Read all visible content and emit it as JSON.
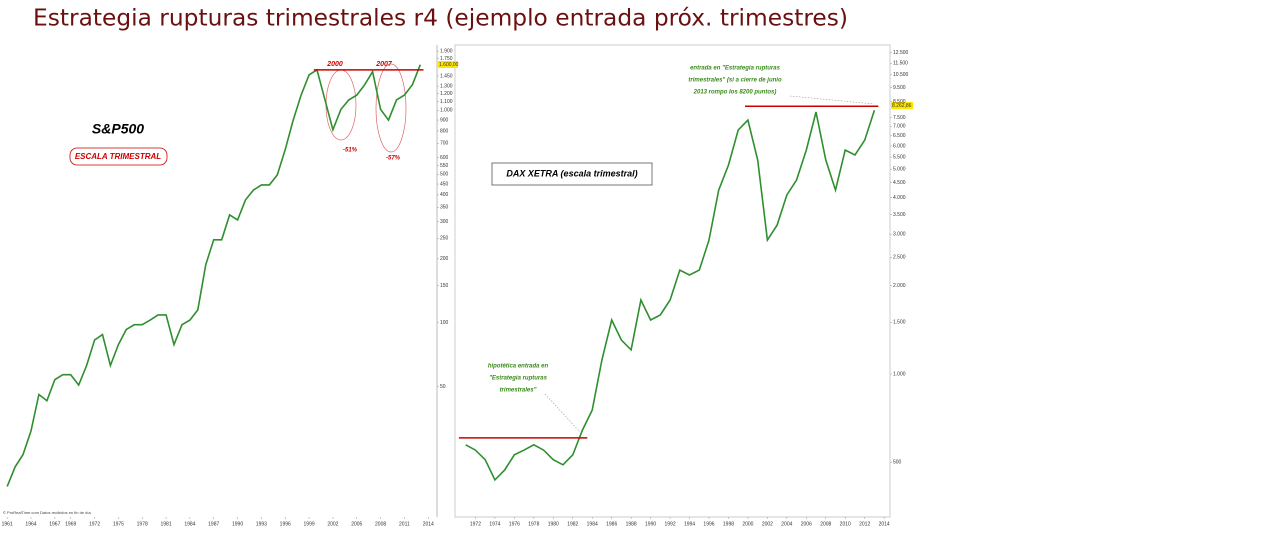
{
  "title": "Estrategia rupturas trimestrales r4 (ejemplo entrada próx. trimestres)",
  "chart_data": [
    {
      "type": "line",
      "log_y": true,
      "color": "#2f8f2f",
      "hline_color": "#cc0000",
      "annotations": [
        "S&P500",
        "ESCALA TRIMESTRAL",
        "2000",
        "2007",
        "-51%",
        "-57%",
        "1.600,00",
        "© ProRealTime.com Datos recibidos en fin de día"
      ],
      "xlim": [
        1960.1,
        2015.1
      ],
      "ylim": [
        12.2,
        2030
      ],
      "xticks": [
        1961,
        1964,
        1967,
        1969,
        1972,
        1975,
        1978,
        1981,
        1984,
        1987,
        1990,
        1993,
        1996,
        1999,
        2002,
        2005,
        2008,
        2011,
        2014
      ],
      "yticks": [
        {
          "value": 1900,
          "label": "1.900"
        },
        {
          "value": 1750,
          "label": "1.750"
        },
        {
          "value": 1450,
          "label": "1.450"
        },
        {
          "value": 1300,
          "label": "1.300"
        },
        {
          "value": 1200,
          "label": "1.200"
        },
        {
          "value": 1100,
          "label": "1.100"
        },
        {
          "value": 1000,
          "label": "1.000"
        },
        900,
        800,
        700,
        600,
        550,
        500,
        450,
        400,
        350,
        300,
        250,
        200,
        150,
        100,
        50
      ],
      "hlines": [
        1550
      ],
      "x": [
        1961,
        1962,
        1963,
        1964,
        1965,
        1966,
        1967,
        1968,
        1969,
        1970,
        1971,
        1972,
        1973,
        1974,
        1975,
        1976,
        1977,
        1978,
        1979,
        1980,
        1981,
        1982,
        1983,
        1984,
        1985,
        1986,
        1987,
        1988,
        1989,
        1990,
        1991,
        1992,
        1993,
        1994,
        1995,
        1996,
        1997,
        1998,
        1999,
        2000,
        2001,
        2002,
        2003,
        2004,
        2005,
        2006,
        2007,
        2008,
        2009,
        2010,
        2011,
        2012,
        2013
      ],
      "series": [
        {
          "values": [
            17,
            21,
            24,
            31,
            46,
            43,
            54,
            57,
            57,
            51,
            63,
            83,
            88,
            63,
            79,
            93,
            98,
            98,
            103,
            109,
            109,
            79,
            98,
            103,
            115,
            188,
            246,
            246,
            322,
            305,
            379,
            422,
            446,
            446,
            497,
            653,
            900,
            1180,
            1470,
            1550,
            1120,
            810,
            1010,
            1120,
            1180,
            1320,
            1520,
            1010,
            900,
            1120,
            1180,
            1320,
            1640
          ]
        }
      ]
    },
    {
      "type": "line",
      "log_y": true,
      "color": "#2f8f2f",
      "hline_color": "#cc0000",
      "annotations": [
        "DAX XETRA (escala trimestral)",
        "entrada  en \"Estrategia rupturas",
        "trimestrales\" (si a cierre de junio",
        "2013 rompo los 8200 puntos)",
        "hipotética entrada en",
        "\"Estrategia rupturas",
        "trimestrales\"",
        "8.262,86"
      ],
      "xlim": [
        1969.9,
        2014.6
      ],
      "ylim": [
        325,
        13270
      ],
      "xticks": [
        1972,
        1974,
        1976,
        1978,
        1980,
        1982,
        1984,
        1986,
        1988,
        1990,
        1992,
        1994,
        1996,
        1998,
        2000,
        2002,
        2004,
        2006,
        2008,
        2010,
        2012,
        2014
      ],
      "yticks": [
        {
          "value": 12500,
          "label": "12.500"
        },
        {
          "value": 11500,
          "label": "11.500"
        },
        {
          "value": 10500,
          "label": "10.500"
        },
        {
          "value": 9500,
          "label": "9.500"
        },
        {
          "value": 8500,
          "label": "8.500"
        },
        {
          "value": 7500,
          "label": "7.500"
        },
        {
          "value": 7000,
          "label": "7.000"
        },
        {
          "value": 6500,
          "label": "6.500"
        },
        {
          "value": 6000,
          "label": "6.000"
        },
        {
          "value": 5500,
          "label": "5.500"
        },
        {
          "value": 5000,
          "label": "5.000"
        },
        {
          "value": 4500,
          "label": "4.500"
        },
        {
          "value": 4000,
          "label": "4.000"
        },
        {
          "value": 3500,
          "label": "3.500"
        },
        {
          "value": 3000,
          "label": "3.000"
        },
        {
          "value": 2500,
          "label": "2.500"
        },
        {
          "value": 2000,
          "label": "2.000"
        },
        {
          "value": 1500,
          "label": "1.500"
        },
        {
          "value": 1000,
          "label": "1.000"
        },
        500
      ],
      "hlines": [
        8200,
        605
      ],
      "x": [
        1971,
        1972,
        1973,
        1974,
        1975,
        1976,
        1977,
        1978,
        1979,
        1980,
        1981,
        1982,
        1983,
        1984,
        1985,
        1986,
        1987,
        1988,
        1989,
        1990,
        1991,
        1992,
        1993,
        1994,
        1995,
        1996,
        1997,
        1998,
        1999,
        2000,
        2001,
        2002,
        2003,
        2004,
        2005,
        2006,
        2007,
        2008,
        2009,
        2010,
        2011,
        2012,
        2013
      ],
      "series": [
        {
          "values": [
            573,
            550,
            510,
            435,
            470,
            530,
            550,
            573,
            550,
            510,
            490,
            530,
            644,
            753,
            1116,
            1529,
            1306,
            1208,
            1788,
            1529,
            1590,
            1788,
            2262,
            2177,
            2262,
            2864,
            4244,
            5167,
            6804,
            7355,
            5373,
            2864,
            3223,
            4080,
            4596,
            5811,
            7840,
            5373,
            4244,
            5811,
            5590,
            6282,
            7950
          ]
        }
      ]
    }
  ]
}
